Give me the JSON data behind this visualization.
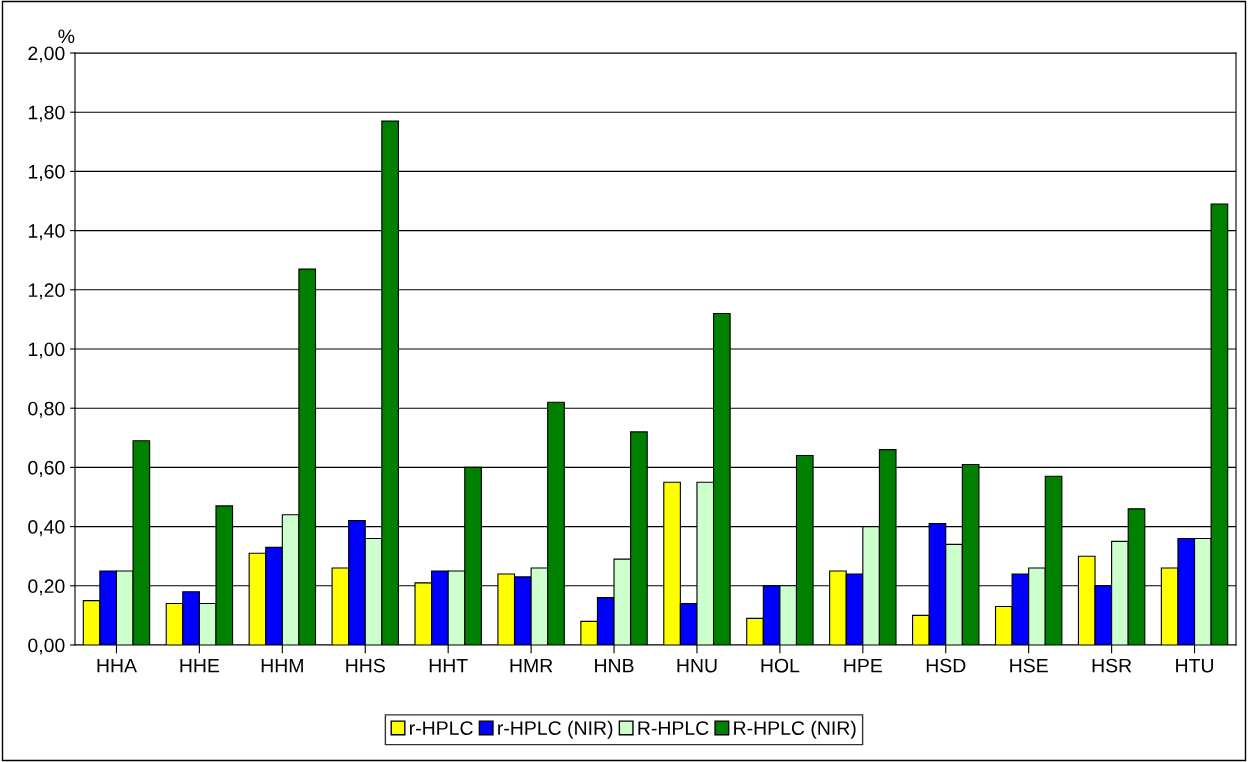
{
  "chart_data": {
    "type": "bar",
    "ylabel": "%",
    "categories": [
      "HHA",
      "HHE",
      "HHM",
      "HHS",
      "HHT",
      "HMR",
      "HNB",
      "HNU",
      "HOL",
      "HPE",
      "HSD",
      "HSE",
      "HSR",
      "HTU"
    ],
    "series": [
      {
        "name": "r-HPLC",
        "color": "#ffff00",
        "values": [
          0.15,
          0.14,
          0.31,
          0.26,
          0.21,
          0.24,
          0.08,
          0.55,
          0.09,
          0.25,
          0.1,
          0.13,
          0.3,
          0.26
        ]
      },
      {
        "name": "r-HPLC (NIR)",
        "color": "#0000ff",
        "values": [
          0.25,
          0.18,
          0.33,
          0.42,
          0.25,
          0.23,
          0.16,
          0.14,
          0.2,
          0.24,
          0.41,
          0.24,
          0.2,
          0.36
        ]
      },
      {
        "name": "R-HPLC",
        "color": "#ccffcc",
        "values": [
          0.25,
          0.14,
          0.44,
          0.36,
          0.25,
          0.26,
          0.29,
          0.55,
          0.2,
          0.4,
          0.34,
          0.26,
          0.35,
          0.36
        ]
      },
      {
        "name": "R-HPLC (NIR)",
        "color": "#008000",
        "values": [
          0.69,
          0.47,
          1.27,
          1.77,
          0.6,
          0.82,
          0.72,
          1.12,
          0.64,
          0.66,
          0.61,
          0.57,
          0.46,
          1.49
        ]
      }
    ],
    "ylim": [
      0,
      2
    ],
    "yticks": [
      {
        "value": 0,
        "label": "0,00"
      },
      {
        "value": 0.2,
        "label": "0,20"
      },
      {
        "value": 0.4,
        "label": "0,40"
      },
      {
        "value": 0.6,
        "label": "0,60"
      },
      {
        "value": 0.8,
        "label": "0,80"
      },
      {
        "value": 1.0,
        "label": "1,00"
      },
      {
        "value": 1.2,
        "label": "1,20"
      },
      {
        "value": 1.4,
        "label": "1,40"
      },
      {
        "value": 1.6,
        "label": "1,60"
      },
      {
        "value": 1.8,
        "label": "1,80"
      },
      {
        "value": 2.0,
        "label": "2,00"
      }
    ],
    "grid": "y",
    "legend": "bottom"
  }
}
